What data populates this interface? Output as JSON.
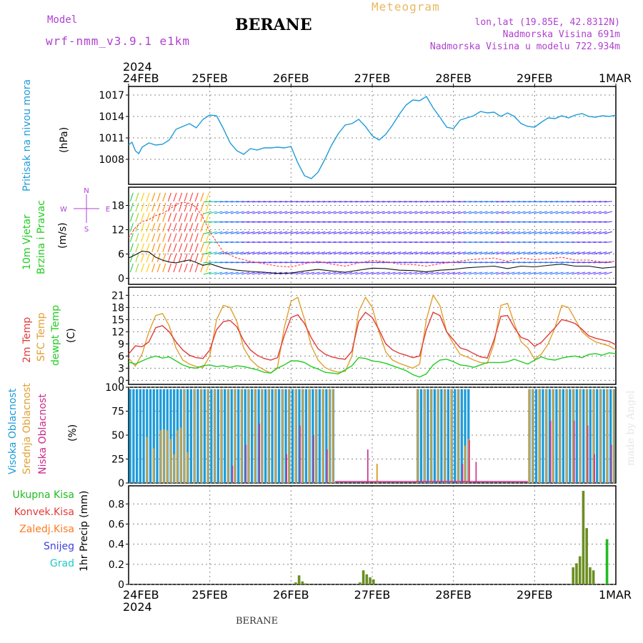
{
  "header": {
    "model_label": "Model",
    "model_name": "wrf-nmm_v3.9.1 e1km",
    "station": "BERANE",
    "product": "Meteogram",
    "lonlat": "lon,lat (19.85E, 42.8312N)",
    "elev": "Nadmorska Visina 691m",
    "elev_model": "Nadmorska Visina u modelu 722.934m",
    "credit": "made by Angel",
    "footer_station": "BERANE"
  },
  "colors": {
    "pressure": "#1e9bd8",
    "temp2m": "#e23b3b",
    "sfc": "#e0a030",
    "dewpt": "#22cc22",
    "high_cloud": "#1e9bd8",
    "mid_cloud": "#e0a030",
    "low_cloud": "#cc2a8a",
    "total_precip": "#22bb22",
    "conv_precip": "#e23b3b",
    "frozen_precip": "#ff7a20",
    "snow": "#4040e0",
    "hail": "#20c8c8",
    "wind_label": "#22cc22",
    "compass": "#b040d0"
  },
  "chart_data": {
    "time_axis": {
      "year_top": "2024",
      "year_bottom": "2024",
      "ticks": [
        "24FEB",
        "25FEB",
        "26FEB",
        "27FEB",
        "28FEB",
        "29FEB",
        "1MAR"
      ],
      "range_hours": [
        0,
        144
      ]
    },
    "pressure": {
      "type": "line",
      "title": "Pritisak na nivou mora",
      "unit": "(hPa)",
      "ylim": [
        1004.5,
        1018.2
      ],
      "yticks": [
        1008,
        1011,
        1014,
        1017
      ],
      "x": [
        0,
        1,
        2,
        3,
        4,
        6,
        8,
        10,
        12,
        14,
        16,
        18,
        20,
        22,
        24,
        26,
        28,
        30,
        32,
        34,
        36,
        38,
        40,
        42,
        44,
        46,
        48,
        50,
        52,
        54,
        56,
        58,
        60,
        62,
        64,
        66,
        68,
        70,
        72,
        74,
        76,
        78,
        80,
        82,
        84,
        86,
        88,
        90,
        92,
        94,
        96,
        98,
        100,
        102,
        104,
        106,
        108,
        110,
        112,
        114,
        116,
        118,
        120,
        122,
        124,
        126,
        128,
        130,
        132,
        134,
        136,
        138,
        140,
        142,
        144
      ],
      "values": [
        1010.0,
        1010.4,
        1009.2,
        1008.8,
        1009.7,
        1010.3,
        1010.0,
        1010.1,
        1010.7,
        1012.2,
        1012.6,
        1013.0,
        1012.4,
        1013.6,
        1014.2,
        1014.1,
        1012.3,
        1010.3,
        1009.2,
        1008.7,
        1009.5,
        1009.3,
        1009.6,
        1009.6,
        1009.7,
        1009.6,
        1009.8,
        1007.5,
        1005.7,
        1005.3,
        1006.2,
        1008.0,
        1010.0,
        1011.6,
        1012.8,
        1013.0,
        1013.6,
        1012.6,
        1011.3,
        1010.7,
        1011.5,
        1012.8,
        1014.3,
        1015.6,
        1016.3,
        1016.2,
        1016.8,
        1015.2,
        1013.9,
        1012.5,
        1012.3,
        1013.5,
        1013.8,
        1014.1,
        1014.7,
        1014.5,
        1014.6,
        1014.0,
        1014.5,
        1014.0,
        1013.0,
        1012.6,
        1012.5,
        1013.2,
        1013.8,
        1013.7,
        1014.1,
        1013.8,
        1014.2,
        1014.4,
        1014.0,
        1013.9,
        1014.1,
        1014.0,
        1014.2
      ]
    },
    "wind": {
      "type": "line",
      "title_line1": "10m Vjetar",
      "title_line2": "Brzina i Pravac",
      "unit": "(m/s)",
      "ylim": [
        -1.5,
        22.5
      ],
      "yticks": [
        0,
        6,
        12,
        18
      ],
      "compass_labels": [
        "N",
        "E",
        "S",
        "W"
      ],
      "x": [
        0,
        2,
        4,
        6,
        8,
        10,
        12,
        14,
        16,
        18,
        20,
        22,
        24,
        28,
        32,
        36,
        40,
        44,
        48,
        52,
        56,
        60,
        64,
        68,
        72,
        76,
        80,
        84,
        88,
        92,
        96,
        100,
        104,
        108,
        112,
        116,
        120,
        124,
        128,
        132,
        136,
        140,
        144
      ],
      "speed": [
        5.0,
        5.8,
        6.7,
        6.5,
        5.2,
        4.5,
        4.0,
        3.8,
        4.2,
        4.5,
        3.9,
        3.2,
        3.6,
        2.5,
        2.0,
        1.7,
        1.5,
        1.2,
        1.3,
        1.8,
        2.2,
        1.8,
        1.5,
        2.0,
        2.5,
        2.4,
        2.0,
        1.9,
        1.6,
        2.0,
        2.2,
        2.6,
        2.8,
        3.0,
        2.4,
        3.0,
        2.8,
        3.2,
        3.5,
        3.0,
        3.0,
        2.5,
        2.8
      ],
      "gust": [
        10.0,
        12.5,
        14.0,
        14.5,
        15.5,
        16.0,
        17.0,
        18.2,
        18.8,
        18.5,
        17.5,
        15.0,
        11.5,
        6.5,
        5.0,
        4.2,
        3.6,
        3.0,
        2.8,
        3.6,
        4.2,
        3.5,
        3.0,
        3.8,
        4.4,
        4.1,
        3.5,
        3.4,
        3.0,
        3.6,
        4.0,
        4.5,
        4.8,
        5.0,
        4.2,
        5.0,
        4.6,
        4.8,
        5.2,
        4.5,
        4.5,
        4.0,
        4.2
      ]
    },
    "temperature": {
      "type": "line",
      "titles": [
        "2m Temp",
        "SFC Temp",
        "dewpt Temp"
      ],
      "unit": "(C)",
      "ylim": [
        -1,
        23
      ],
      "yticks": [
        0,
        3,
        6,
        9,
        12,
        15,
        18,
        21
      ],
      "x": [
        0,
        2,
        4,
        6,
        8,
        10,
        12,
        14,
        16,
        18,
        20,
        22,
        24,
        26,
        28,
        30,
        32,
        34,
        36,
        38,
        40,
        42,
        44,
        46,
        48,
        50,
        52,
        54,
        56,
        58,
        60,
        62,
        64,
        66,
        68,
        70,
        72,
        74,
        76,
        78,
        80,
        82,
        84,
        86,
        88,
        90,
        92,
        94,
        96,
        98,
        100,
        102,
        104,
        106,
        108,
        110,
        112,
        114,
        116,
        118,
        120,
        122,
        124,
        126,
        128,
        130,
        132,
        134,
        136,
        138,
        140,
        142,
        144
      ],
      "t2m": [
        6.5,
        8.5,
        8.3,
        9.5,
        13.0,
        13.5,
        12.0,
        9.5,
        7.5,
        6.2,
        5.6,
        5.4,
        7.5,
        12.5,
        14.5,
        14.8,
        13.2,
        9.8,
        7.5,
        6.2,
        5.4,
        5.0,
        5.6,
        11.0,
        15.5,
        16.2,
        14.0,
        10.5,
        7.8,
        6.5,
        5.8,
        5.4,
        5.2,
        7.2,
        14.5,
        16.8,
        15.5,
        12.5,
        9.0,
        7.5,
        6.7,
        6.2,
        5.6,
        6.0,
        12.5,
        16.8,
        16.0,
        12.0,
        10.0,
        8.0,
        7.5,
        6.6,
        5.8,
        5.5,
        10.0,
        15.8,
        16.0,
        13.0,
        10.6,
        10.0,
        8.4,
        9.4,
        11.2,
        13.0,
        15.0,
        14.6,
        14.0,
        12.6,
        11.0,
        10.4,
        10.0,
        9.6,
        8.8
      ],
      "sfc": [
        5.5,
        3.5,
        6.5,
        12.0,
        16.0,
        16.5,
        13.5,
        8.0,
        5.0,
        4.0,
        3.4,
        3.2,
        6.0,
        15.0,
        18.5,
        18.0,
        14.5,
        8.0,
        5.2,
        3.6,
        2.6,
        1.8,
        3.2,
        13.0,
        19.5,
        20.5,
        15.0,
        8.5,
        5.0,
        3.2,
        2.4,
        2.0,
        2.2,
        6.0,
        17.0,
        20.5,
        18.0,
        12.0,
        7.0,
        5.0,
        4.2,
        3.6,
        3.0,
        4.0,
        15.0,
        21.0,
        18.5,
        12.0,
        9.0,
        6.4,
        5.8,
        5.0,
        4.4,
        4.2,
        9.0,
        18.5,
        19.0,
        14.0,
        9.5,
        8.0,
        5.2,
        6.5,
        9.0,
        13.0,
        18.5,
        18.0,
        15.0,
        12.0,
        10.5,
        9.5,
        9.0,
        8.5,
        7.5
      ],
      "dewpt": [
        4.5,
        4.0,
        4.8,
        5.5,
        6.0,
        5.5,
        5.8,
        4.8,
        3.8,
        3.2,
        3.0,
        3.6,
        3.8,
        3.4,
        3.6,
        3.2,
        3.6,
        3.4,
        3.0,
        2.6,
        2.0,
        1.8,
        3.0,
        3.8,
        4.8,
        4.8,
        4.4,
        3.4,
        2.8,
        2.0,
        1.8,
        1.6,
        2.6,
        3.6,
        5.6,
        5.4,
        4.8,
        4.6,
        4.2,
        3.6,
        3.0,
        2.4,
        1.4,
        0.8,
        1.6,
        3.8,
        5.0,
        5.2,
        4.6,
        3.8,
        3.6,
        3.2,
        3.8,
        4.4,
        4.4,
        4.4,
        4.6,
        5.2,
        4.6,
        4.0,
        5.0,
        5.8,
        5.2,
        5.0,
        5.5,
        5.8,
        6.0,
        5.6,
        6.4,
        6.6,
        6.2,
        6.8,
        6.6
      ]
    },
    "clouds": {
      "type": "bar",
      "titles": [
        "Visoka Oblacnost",
        "Srednja Oblacnost",
        "Niska Oblacnost"
      ],
      "unit": "(%)",
      "ylim": [
        0,
        100
      ],
      "yticks": [
        0,
        25,
        50,
        75,
        100
      ],
      "high_segments": [
        [
          0,
          61
        ],
        [
          85,
          101
        ],
        [
          118,
          144
        ]
      ],
      "mid": [
        [
          5,
          48
        ],
        [
          7,
          36
        ],
        [
          9,
          55
        ],
        [
          10,
          56
        ],
        [
          11,
          55
        ],
        [
          12,
          46
        ],
        [
          13,
          30
        ],
        [
          14,
          55
        ],
        [
          15,
          58
        ],
        [
          16,
          98
        ],
        [
          17,
          32
        ],
        [
          19,
          98
        ],
        [
          21,
          98
        ],
        [
          23,
          98
        ],
        [
          25,
          98
        ],
        [
          27,
          98
        ],
        [
          29,
          98
        ],
        [
          31,
          98
        ],
        [
          33,
          98
        ],
        [
          35,
          98
        ],
        [
          37,
          98
        ],
        [
          39,
          98
        ],
        [
          41,
          98
        ],
        [
          43,
          98
        ],
        [
          45,
          98
        ],
        [
          47,
          98
        ],
        [
          49,
          98
        ],
        [
          51,
          98
        ],
        [
          53,
          98
        ],
        [
          55,
          98
        ],
        [
          57,
          98
        ],
        [
          59,
          98
        ],
        [
          60,
          98
        ],
        [
          73,
          20
        ],
        [
          85,
          98
        ],
        [
          87,
          98
        ],
        [
          89,
          98
        ],
        [
          91,
          98
        ],
        [
          93,
          98
        ],
        [
          95,
          98
        ],
        [
          97,
          98
        ],
        [
          99,
          39
        ],
        [
          100,
          46
        ],
        [
          118,
          98
        ],
        [
          119,
          98
        ],
        [
          121,
          98
        ],
        [
          123,
          98
        ],
        [
          125,
          98
        ],
        [
          127,
          98
        ],
        [
          129,
          98
        ],
        [
          131,
          98
        ],
        [
          133,
          98
        ],
        [
          135,
          98
        ],
        [
          137,
          98
        ],
        [
          139,
          98
        ],
        [
          141,
          98
        ],
        [
          143,
          98
        ]
      ],
      "low": [
        [
          30,
          18
        ],
        [
          34,
          40
        ],
        [
          38,
          62
        ],
        [
          46,
          30
        ],
        [
          50,
          60
        ],
        [
          54,
          50
        ],
        [
          58,
          35
        ],
        [
          70,
          35
        ],
        [
          98,
          20
        ],
        [
          100,
          45
        ],
        [
          102,
          22
        ],
        [
          124,
          65
        ],
        [
          131,
          65
        ],
        [
          135,
          60
        ],
        [
          137,
          30
        ],
        [
          142,
          40
        ]
      ]
    },
    "precip": {
      "type": "bar",
      "ylabel": "1hr Precip (mm)",
      "legend": [
        "Ukupna Kisa",
        "Konvek.Kisa",
        "Zaledj.Kisa",
        "Snijeg",
        "Grad"
      ],
      "ylim": [
        0,
        0.98
      ],
      "yticks": [
        0,
        0.2,
        0.4,
        0.6,
        0.8
      ],
      "yticklabels": [
        "0",
        "0.2",
        "0.4",
        "0.6",
        "0.8"
      ],
      "total": [
        [
          49,
          0.02
        ],
        [
          50,
          0.09
        ],
        [
          51,
          0.03
        ],
        [
          52,
          0.01
        ],
        [
          68,
          0.02
        ],
        [
          69,
          0.14
        ],
        [
          70,
          0.1
        ],
        [
          71,
          0.07
        ],
        [
          72,
          0.05
        ],
        [
          131,
          0.17
        ],
        [
          132,
          0.21
        ],
        [
          133,
          0.28
        ],
        [
          134,
          0.93
        ],
        [
          135,
          0.56
        ],
        [
          136,
          0.17
        ],
        [
          137,
          0.14
        ],
        [
          141,
          0.45
        ]
      ]
    }
  }
}
